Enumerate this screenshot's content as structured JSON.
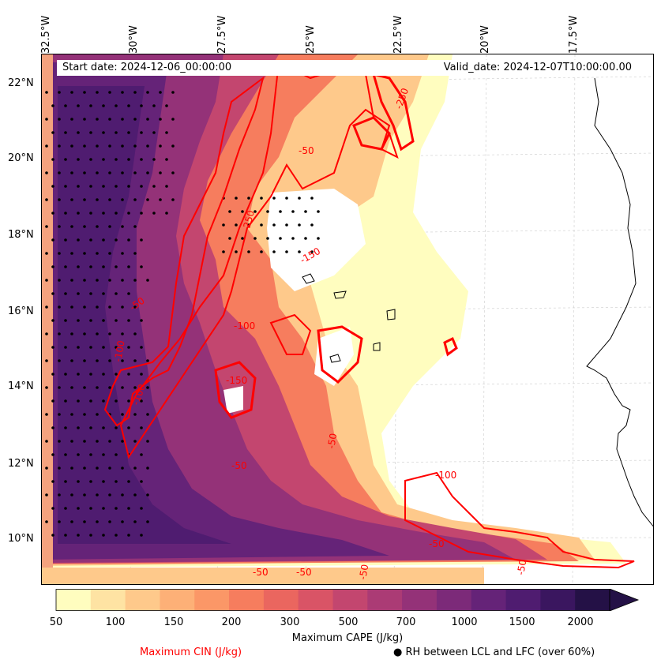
{
  "header": {
    "start_date": "Start date: 2024-12-06_00:00:00",
    "valid_date": "Valid_date: 2024-12-07T10:00:00.00"
  },
  "longitude_labels": [
    "32.5°W",
    "30°W",
    "27.5°W",
    "25°W",
    "22.5°W",
    "20°W",
    "17.5°W"
  ],
  "latitude_labels": [
    "22°N",
    "20°N",
    "18°N",
    "16°N",
    "14°N",
    "12°N",
    "10°N"
  ],
  "colorbar": {
    "title": "Maximum CAPE (J/kg)",
    "ticks": [
      "50",
      "100",
      "150",
      "200",
      "300",
      "500",
      "700",
      "1000",
      "1500",
      "2000"
    ],
    "colors": [
      "#fffdbf",
      "#fee3a3",
      "#fec98b",
      "#fdb077",
      "#fb9767",
      "#f67d5e",
      "#ea665f",
      "#d95466",
      "#c3466f",
      "#ab3b75",
      "#943278",
      "#7c2a79",
      "#652378",
      "#4f1c70",
      "#3a165f",
      "#241146"
    ]
  },
  "contour_labels": [
    "-250",
    "-50",
    "-250",
    "-150",
    "-50",
    "-100",
    "-100",
    "-150",
    "-50",
    "-100",
    "-50",
    "-100",
    "-50",
    "-50",
    "-50",
    "-50",
    "-50"
  ],
  "legend": {
    "cin_label": "Maximum CIN (J/kg)",
    "cin_color": "#ff0000",
    "rh_marker": "●",
    "rh_label": "RH between LCL and LFC (over 60%)"
  }
}
